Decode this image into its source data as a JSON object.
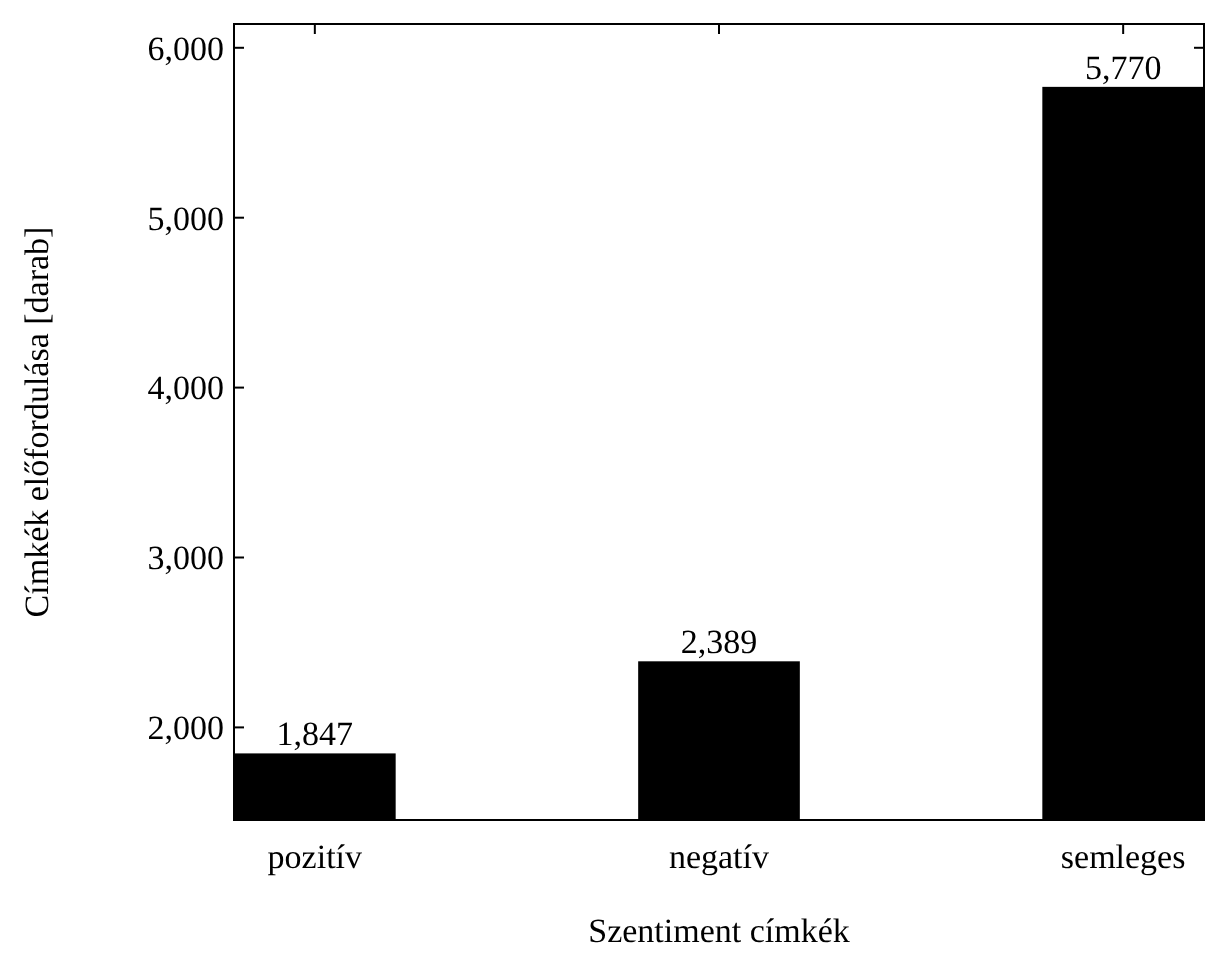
{
  "chart_data": {
    "type": "bar",
    "xlabel": "Szentiment címkék",
    "ylabel": "Címkék előfordulása [darab]",
    "categories": [
      "pozitív",
      "negatív",
      "semleges"
    ],
    "values": [
      1847,
      2389,
      5770
    ],
    "color": "#000000",
    "value_labels": [
      "1,847",
      "2,389",
      "5,770"
    ],
    "ylim": [
      1455,
      6140
    ],
    "yticks": [
      {
        "value": 2000,
        "label": "2,000"
      },
      {
        "value": 3000,
        "label": "3,000"
      },
      {
        "value": 4000,
        "label": "4,000"
      },
      {
        "value": 5000,
        "label": "5,000"
      },
      {
        "value": 6000,
        "label": "6,000"
      }
    ],
    "grid": false
  }
}
